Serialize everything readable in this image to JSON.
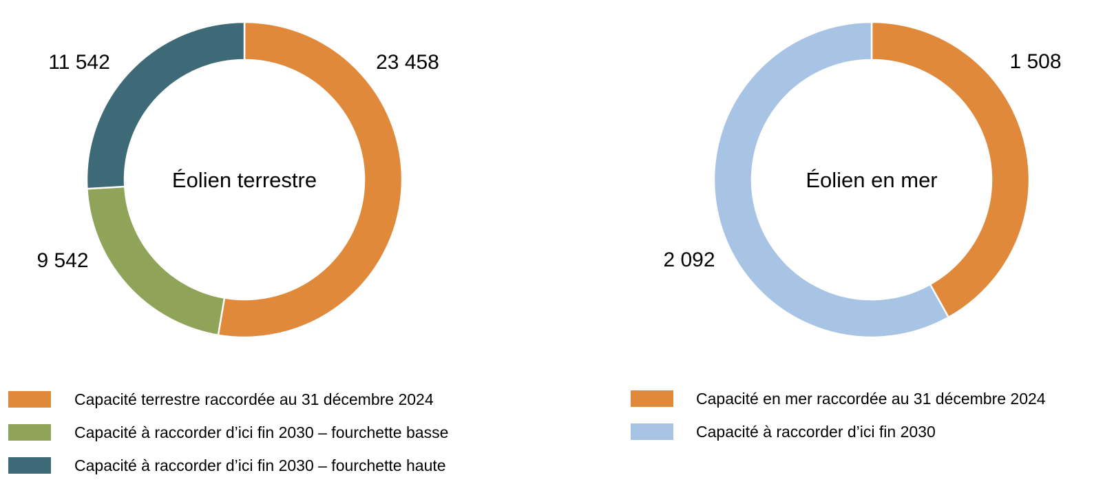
{
  "colors": {
    "orange": "#E0893A",
    "green": "#8FA458",
    "teal": "#3E6A78",
    "light_blue": "#A8C4E4"
  },
  "chart_data": [
    {
      "type": "pie",
      "donut": true,
      "title": "",
      "center_label": "Éolien terrestre",
      "slices": [
        {
          "label": "Capacité terrestre raccordée au 31 décembre 2024",
          "value": 23458,
          "display": "23 458",
          "color": "#E0893A"
        },
        {
          "label": "Capacité à raccorder d’ici fin 2030 – fourchette basse",
          "value": 9542,
          "display": "9 542",
          "color": "#8FA458"
        },
        {
          "label": "Capacité à raccorder d’ici fin 2030 – fourchette haute",
          "value": 11542,
          "display": "11 542",
          "color": "#3E6A78"
        }
      ],
      "legend": {
        "position": "bottom"
      }
    },
    {
      "type": "pie",
      "donut": true,
      "title": "",
      "center_label": "Éolien en mer",
      "slices": [
        {
          "label": "Capacité en mer raccordée au 31 décembre 2024",
          "value": 1508,
          "display": "1 508",
          "color": "#E0893A"
        },
        {
          "label": "Capacité à raccorder d’ici fin 2030",
          "value": 2092,
          "display": "2 092",
          "color": "#A8C4E4"
        }
      ],
      "legend": {
        "position": "bottom"
      }
    }
  ]
}
